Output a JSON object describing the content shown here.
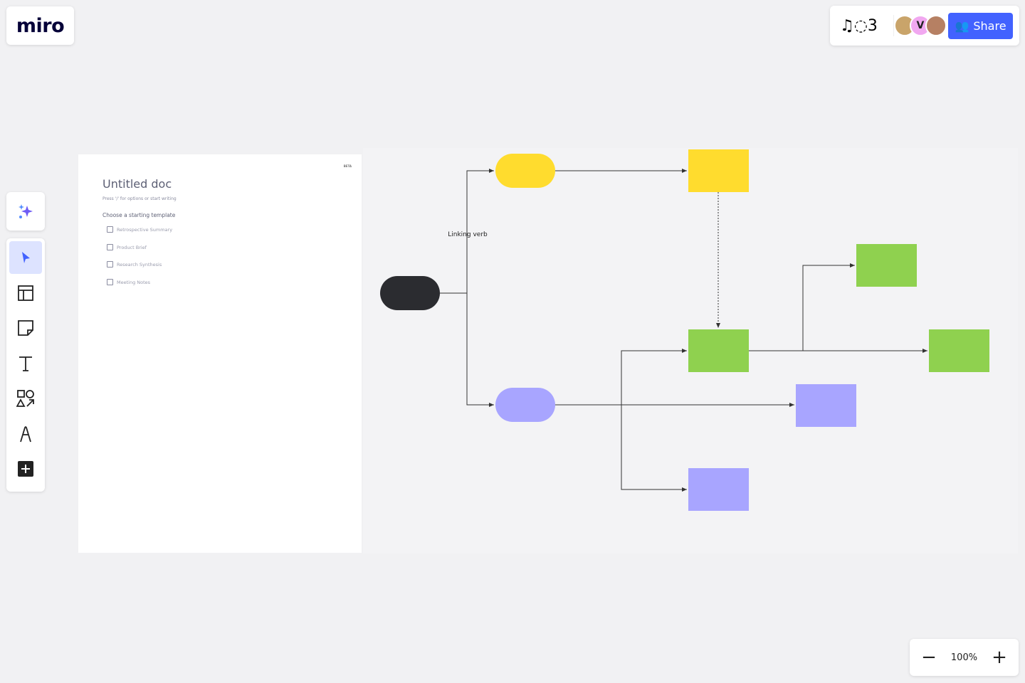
{
  "app": {
    "logo": "miro"
  },
  "header": {
    "share_label": "Share",
    "collaborators": [
      {
        "name": "user-1",
        "initial": "",
        "color": "#c9a46a"
      },
      {
        "name": "user-2",
        "initial": "V",
        "color": "#f1a8f0"
      },
      {
        "name": "user-3",
        "initial": "",
        "color": "#b68063"
      }
    ]
  },
  "toolbar": {
    "tools": [
      "select",
      "templates",
      "sticky-note",
      "text",
      "shapes",
      "pen",
      "add"
    ],
    "active": "select"
  },
  "doc": {
    "beta": "BETA",
    "title": "Untitled doc",
    "subtitle": "Press '/' for options or start writing",
    "template_heading": "Choose a starting template",
    "templates": [
      "Retrospective Summary",
      "Product Brief",
      "Research Synthesis",
      "Meeting Notes"
    ]
  },
  "diagram": {
    "colors": {
      "dark": "#2b2c30",
      "yellow": "#ffdc2e",
      "green": "#8fd14f",
      "purple": "#a8a5ff",
      "line": "#333333"
    },
    "nodes": [
      "start-pill",
      "yellow-pill",
      "purple-pill",
      "yellow-box",
      "green-box-center",
      "green-box-top",
      "green-box-right",
      "purple-box-right",
      "purple-box-bottom"
    ],
    "connector_label": "Linking verb"
  },
  "zoom": {
    "value": "100%"
  }
}
